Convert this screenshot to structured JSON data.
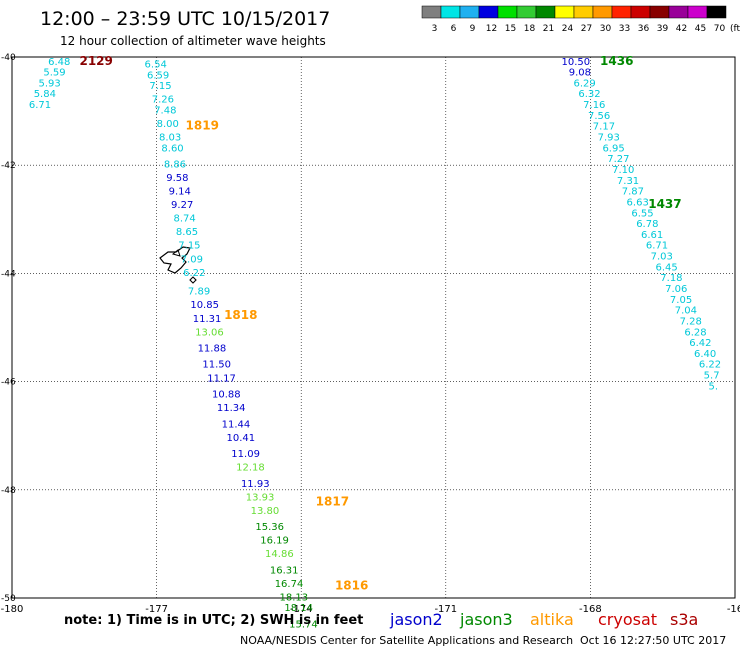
{
  "header": {
    "title": "12:00 – 23:59 UTC 10/15/2017",
    "subtitle": "12 hour collection of altimeter wave heights"
  },
  "legend": {
    "labels": [
      "3",
      "6",
      "9",
      "12",
      "15",
      "18",
      "21",
      "24",
      "27",
      "30",
      "33",
      "36",
      "39",
      "42",
      "45",
      "70"
    ],
    "unit": "(ft)",
    "colors": [
      "#7f7f7f",
      "#00e5e5",
      "#1fb0f0",
      "#0000e0",
      "#00e000",
      "#33cc33",
      "#008800",
      "#ffff00",
      "#ffcc00",
      "#ff9900",
      "#ff2200",
      "#cc0000",
      "#880000",
      "#990099",
      "#cc00cc",
      "#000000"
    ]
  },
  "axes": {
    "x_ticks": [
      "-180",
      "-177",
      "-174",
      "-171",
      "-168",
      "-16"
    ],
    "y_ticks": [
      "-40",
      "-42",
      "-44",
      "-46",
      "-48",
      "-50"
    ],
    "x_range": [
      -180,
      -165
    ],
    "y_range": [
      -40,
      -50
    ]
  },
  "colors": {
    "jason2": "#0000cc",
    "jason3": "#008800",
    "altika": "#ff9900",
    "cryosat": "#cc0000",
    "s3a": "#aa0000",
    "cyan": "#00c8d8",
    "light_green": "#66dd33"
  },
  "times": [
    {
      "label": "2129",
      "color": "#880000",
      "lon": -178.6,
      "lat": -40.07
    },
    {
      "label": "1819",
      "color": "#ff9900",
      "lon": -176.4,
      "lat": -41.27
    },
    {
      "label": "1818",
      "color": "#ff9900",
      "lon": -175.6,
      "lat": -44.77
    },
    {
      "label": "1817",
      "color": "#ff9900",
      "lon": -173.7,
      "lat": -48.22
    },
    {
      "label": "1816",
      "color": "#ff9900",
      "lon": -173.3,
      "lat": -49.77
    },
    {
      "label": "1436",
      "color": "#008800",
      "lon": -167.8,
      "lat": -40.07
    },
    {
      "label": "1437",
      "color": "#008800",
      "lon": -166.8,
      "lat": -42.72
    }
  ],
  "tracks": [
    {
      "name": "track-a",
      "points": [
        {
          "v": "6.48",
          "lon": -179.25,
          "lat": -40.07,
          "c": "cyan"
        },
        {
          "v": "5.59",
          "lon": -179.35,
          "lat": -40.27,
          "c": "cyan"
        },
        {
          "v": "5.93",
          "lon": -179.45,
          "lat": -40.47,
          "c": "cyan"
        },
        {
          "v": "5.84",
          "lon": -179.55,
          "lat": -40.67,
          "c": "cyan"
        },
        {
          "v": "6.71",
          "lon": -179.65,
          "lat": -40.87,
          "c": "cyan"
        }
      ]
    },
    {
      "name": "track-b",
      "points": [
        {
          "v": "6.54",
          "lon": -177.25,
          "lat": -40.12,
          "c": "cyan"
        },
        {
          "v": "6.59",
          "lon": -177.2,
          "lat": -40.32,
          "c": "cyan"
        },
        {
          "v": "7.15",
          "lon": -177.15,
          "lat": -40.52,
          "c": "cyan"
        },
        {
          "v": "7.26",
          "lon": -177.1,
          "lat": -40.77,
          "c": "cyan"
        },
        {
          "v": "7.48",
          "lon": -177.05,
          "lat": -40.97,
          "c": "cyan"
        },
        {
          "v": "8.00",
          "lon": -177.0,
          "lat": -41.22,
          "c": "cyan"
        },
        {
          "v": "8.03",
          "lon": -176.95,
          "lat": -41.47,
          "c": "cyan"
        },
        {
          "v": "8.60",
          "lon": -176.9,
          "lat": -41.67,
          "c": "cyan"
        },
        {
          "v": "8.86",
          "lon": -176.85,
          "lat": -41.97,
          "c": "cyan"
        },
        {
          "v": "9.58",
          "lon": -176.8,
          "lat": -42.22,
          "c": "jason2"
        },
        {
          "v": "9.14",
          "lon": -176.75,
          "lat": -42.47,
          "c": "jason2"
        },
        {
          "v": "9.27",
          "lon": -176.7,
          "lat": -42.72,
          "c": "jason2"
        },
        {
          "v": "8.74",
          "lon": -176.65,
          "lat": -42.97,
          "c": "cyan"
        },
        {
          "v": "8.65",
          "lon": -176.6,
          "lat": -43.22,
          "c": "cyan"
        },
        {
          "v": "7.15",
          "lon": -176.55,
          "lat": -43.47,
          "c": "cyan"
        },
        {
          "v": "7.09",
          "lon": -176.5,
          "lat": -43.72,
          "c": "cyan"
        },
        {
          "v": "6.22",
          "lon": -176.45,
          "lat": -43.97,
          "c": "cyan"
        },
        {
          "v": "7.89",
          "lon": -176.35,
          "lat": -44.32,
          "c": "cyan"
        },
        {
          "v": "10.85",
          "lon": -176.3,
          "lat": -44.57,
          "c": "jason2"
        },
        {
          "v": "11.31",
          "lon": -176.25,
          "lat": -44.82,
          "c": "jason2"
        },
        {
          "v": "13.06",
          "lon": -176.2,
          "lat": -45.07,
          "c": "light_green"
        },
        {
          "v": "11.88",
          "lon": -176.15,
          "lat": -45.37,
          "c": "jason2"
        },
        {
          "v": "11.50",
          "lon": -176.05,
          "lat": -45.67,
          "c": "jason2"
        },
        {
          "v": "11.17",
          "lon": -175.95,
          "lat": -45.92,
          "c": "jason2"
        },
        {
          "v": "10.88",
          "lon": -175.85,
          "lat": -46.22,
          "c": "jason2"
        },
        {
          "v": "11.34",
          "lon": -175.75,
          "lat": -46.47,
          "c": "jason2"
        },
        {
          "v": "11.44",
          "lon": -175.65,
          "lat": -46.77,
          "c": "jason2"
        },
        {
          "v": "10.41",
          "lon": -175.55,
          "lat": -47.02,
          "c": "jason2"
        },
        {
          "v": "11.09",
          "lon": -175.45,
          "lat": -47.32,
          "c": "jason2"
        },
        {
          "v": "12.18",
          "lon": -175.35,
          "lat": -47.57,
          "c": "light_green"
        },
        {
          "v": "11.93",
          "lon": -175.25,
          "lat": -47.87,
          "c": "jason2"
        },
        {
          "v": "13.93",
          "lon": -175.15,
          "lat": -48.12,
          "c": "light_green"
        },
        {
          "v": "13.80",
          "lon": -175.05,
          "lat": -48.37,
          "c": "light_green"
        },
        {
          "v": "15.36",
          "lon": -174.95,
          "lat": -48.67,
          "c": "jason3"
        },
        {
          "v": "16.19",
          "lon": -174.85,
          "lat": -48.92,
          "c": "jason3"
        },
        {
          "v": "14.86",
          "lon": -174.75,
          "lat": -49.17,
          "c": "light_green"
        },
        {
          "v": "16.31",
          "lon": -174.65,
          "lat": -49.47,
          "c": "jason3"
        },
        {
          "v": "16.74",
          "lon": -174.55,
          "lat": -49.72,
          "c": "jason3"
        },
        {
          "v": "18.13",
          "lon": -174.45,
          "lat": -49.97,
          "c": "jason3"
        },
        {
          "v": "18.14",
          "lon": -174.35,
          "lat": -50.17,
          "c": "jason3"
        },
        {
          "v": "15.74",
          "lon": -174.25,
          "lat": -50.47,
          "c": "jason3"
        }
      ]
    },
    {
      "name": "track-c",
      "points": [
        {
          "v": "10.50",
          "lon": -168.6,
          "lat": -40.07,
          "c": "jason2"
        },
        {
          "v": "9.08",
          "lon": -168.45,
          "lat": -40.27,
          "c": "jason2"
        },
        {
          "v": "6.29",
          "lon": -168.35,
          "lat": -40.47,
          "c": "cyan"
        },
        {
          "v": "6.32",
          "lon": -168.25,
          "lat": -40.67,
          "c": "cyan"
        },
        {
          "v": "7.16",
          "lon": -168.15,
          "lat": -40.87,
          "c": "cyan"
        },
        {
          "v": "7.56",
          "lon": -168.05,
          "lat": -41.07,
          "c": "cyan"
        },
        {
          "v": "7.17",
          "lon": -167.95,
          "lat": -41.27,
          "c": "cyan"
        },
        {
          "v": "7.93",
          "lon": -167.85,
          "lat": -41.47,
          "c": "cyan"
        },
        {
          "v": "6.95",
          "lon": -167.75,
          "lat": -41.67,
          "c": "cyan"
        },
        {
          "v": "7.27",
          "lon": -167.65,
          "lat": -41.87,
          "c": "cyan"
        },
        {
          "v": "7.10",
          "lon": -167.55,
          "lat": -42.07,
          "c": "cyan"
        },
        {
          "v": "7.31",
          "lon": -167.45,
          "lat": -42.27,
          "c": "cyan"
        },
        {
          "v": "7.87",
          "lon": -167.35,
          "lat": -42.47,
          "c": "cyan"
        },
        {
          "v": "6.63",
          "lon": -167.25,
          "lat": -42.67,
          "c": "cyan"
        },
        {
          "v": "6.55",
          "lon": -167.15,
          "lat": -42.87,
          "c": "cyan"
        },
        {
          "v": "6.78",
          "lon": -167.05,
          "lat": -43.07,
          "c": "cyan"
        },
        {
          "v": "6.61",
          "lon": -166.95,
          "lat": -43.27,
          "c": "cyan"
        },
        {
          "v": "6.71",
          "lon": -166.85,
          "lat": -43.47,
          "c": "cyan"
        },
        {
          "v": "7.03",
          "lon": -166.75,
          "lat": -43.67,
          "c": "cyan"
        },
        {
          "v": "6.45",
          "lon": -166.65,
          "lat": -43.87,
          "c": "cyan"
        },
        {
          "v": "7.18",
          "lon": -166.55,
          "lat": -44.07,
          "c": "cyan"
        },
        {
          "v": "7.06",
          "lon": -166.45,
          "lat": -44.27,
          "c": "cyan"
        },
        {
          "v": "7.05",
          "lon": -166.35,
          "lat": -44.47,
          "c": "cyan"
        },
        {
          "v": "7.04",
          "lon": -166.25,
          "lat": -44.67,
          "c": "cyan"
        },
        {
          "v": "7.28",
          "lon": -166.15,
          "lat": -44.87,
          "c": "cyan"
        },
        {
          "v": "6.28",
          "lon": -166.05,
          "lat": -45.07,
          "c": "cyan"
        },
        {
          "v": "6.42",
          "lon": -165.95,
          "lat": -45.27,
          "c": "cyan"
        },
        {
          "v": "6.40",
          "lon": -165.85,
          "lat": -45.47,
          "c": "cyan"
        },
        {
          "v": "6.22",
          "lon": -165.75,
          "lat": -45.67,
          "c": "cyan"
        },
        {
          "v": "5.7",
          "lon": -165.65,
          "lat": -45.87,
          "c": "cyan"
        },
        {
          "v": "5.",
          "lon": -165.55,
          "lat": -46.07,
          "c": "cyan"
        }
      ]
    }
  ],
  "footer": {
    "note": "note:  1) Time is in UTC; 2) SWH is in feet",
    "satellites": [
      {
        "name": "jason2",
        "color": "#0000cc"
      },
      {
        "name": "jason3",
        "color": "#008800"
      },
      {
        "name": "altika",
        "color": "#ff9900"
      },
      {
        "name": "cryosat",
        "color": "#cc0000"
      },
      {
        "name": "s3a",
        "color": "#aa0000"
      }
    ],
    "credit": "NOAA/NESDIS Center for Satellite Applications and Research",
    "timestamp": "Oct 16 12:27:50 UTC 2017"
  }
}
